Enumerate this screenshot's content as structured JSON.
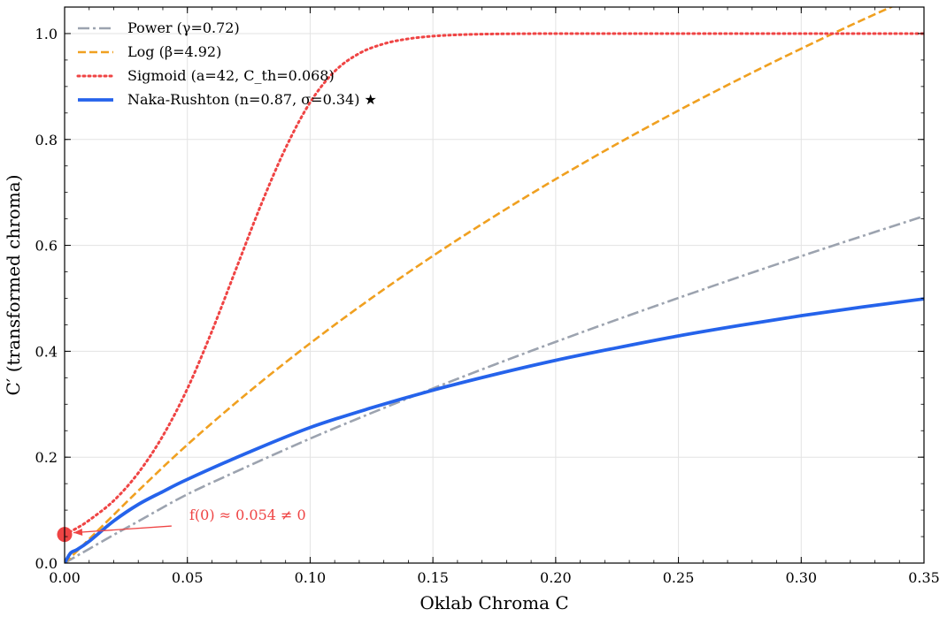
{
  "chart_data": {
    "type": "line",
    "title": "",
    "xlabel": "Oklab Chroma  C",
    "ylabel": "C′ (transformed chroma)",
    "xlim": [
      0,
      0.35
    ],
    "ylim": [
      0,
      1.05
    ],
    "x_ticks": [
      0,
      0.05,
      0.1,
      0.15,
      0.2,
      0.25,
      0.3,
      0.35
    ],
    "x_tick_labels": [
      "0.00",
      "0.05",
      "0.10",
      "0.15",
      "0.20",
      "0.25",
      "0.30",
      "0.35"
    ],
    "y_ticks": [
      0,
      0.2,
      0.4,
      0.6,
      0.8,
      1.0
    ],
    "y_tick_labels": [
      "0.0",
      "0.2",
      "0.4",
      "0.6",
      "0.8",
      "1.0"
    ],
    "grid": true,
    "legend_position": "top-left",
    "series": [
      {
        "name": "Power  (γ=0.72)",
        "color": "#9ca3af",
        "style": "dashdot",
        "x": [
          0,
          0.005,
          0.01,
          0.02,
          0.03,
          0.05,
          0.075,
          0.1,
          0.125,
          0.15,
          0.175,
          0.2,
          0.225,
          0.25,
          0.275,
          0.3,
          0.325,
          0.35
        ],
        "y": [
          0,
          0.0136,
          0.0268,
          0.0533,
          0.0788,
          0.1299,
          0.1835,
          0.2351,
          0.2834,
          0.3298,
          0.3746,
          0.4178,
          0.4598,
          0.5007,
          0.5407,
          0.5796,
          0.6177,
          0.6551
        ]
      },
      {
        "name": "Log  (β=4.92)",
        "color": "#f0a020",
        "style": "dashed",
        "x": [
          0,
          0.005,
          0.01,
          0.02,
          0.03,
          0.05,
          0.075,
          0.1,
          0.125,
          0.15,
          0.175,
          0.2,
          0.225,
          0.25,
          0.275,
          0.3,
          0.325,
          0.35
        ],
        "y": [
          0,
          0.0224,
          0.0452,
          0.0911,
          0.1366,
          0.2236,
          0.3231,
          0.415,
          0.5004,
          0.5801,
          0.6548,
          0.7251,
          0.7916,
          0.8546,
          0.9145,
          0.9715,
          1.0259,
          1.0779
        ]
      },
      {
        "name": "Sigmoid  (a=42, C_th=0.068)",
        "color": "#ef4444",
        "style": "dotted",
        "x": [
          0,
          0.005,
          0.01,
          0.02,
          0.03,
          0.04,
          0.05,
          0.06,
          0.07,
          0.08,
          0.09,
          0.1,
          0.11,
          0.12,
          0.13,
          0.14,
          0.15,
          0.16,
          0.17,
          0.18,
          0.19,
          0.2,
          0.22,
          0.25,
          0.3,
          0.35
        ],
        "y": [
          0.054,
          0.0661,
          0.0809,
          0.1178,
          0.1702,
          0.2402,
          0.3293,
          0.438,
          0.5575,
          0.6767,
          0.7837,
          0.87,
          0.9287,
          0.9625,
          0.9806,
          0.9901,
          0.9951,
          0.9976,
          0.9989,
          0.9995,
          0.9998,
          0.9999,
          1.0,
          1.0,
          1.0,
          1.0
        ]
      },
      {
        "name": "Naka-Rushton  (n=0.87, σ=0.34) ★",
        "color": "#2563eb",
        "style": "solid",
        "x": [
          0,
          0.0025,
          0.005,
          0.01,
          0.02,
          0.03,
          0.04,
          0.05,
          0.075,
          0.1,
          0.125,
          0.15,
          0.175,
          0.2,
          0.225,
          0.25,
          0.275,
          0.3,
          0.325,
          0.35
        ],
        "y": [
          0,
          0.0193,
          0.0252,
          0.0411,
          0.0795,
          0.1107,
          0.135,
          0.1581,
          0.2093,
          0.256,
          0.2932,
          0.3265,
          0.356,
          0.3829,
          0.4066,
          0.429,
          0.4488,
          0.4671,
          0.4836,
          0.499
        ]
      }
    ],
    "annotations": [
      {
        "text": "f(0) ≈ 0.054 ≠ 0",
        "color": "#ef4444",
        "point": [
          0,
          0.054
        ],
        "text_at": [
          0.045,
          0.09
        ]
      }
    ]
  }
}
